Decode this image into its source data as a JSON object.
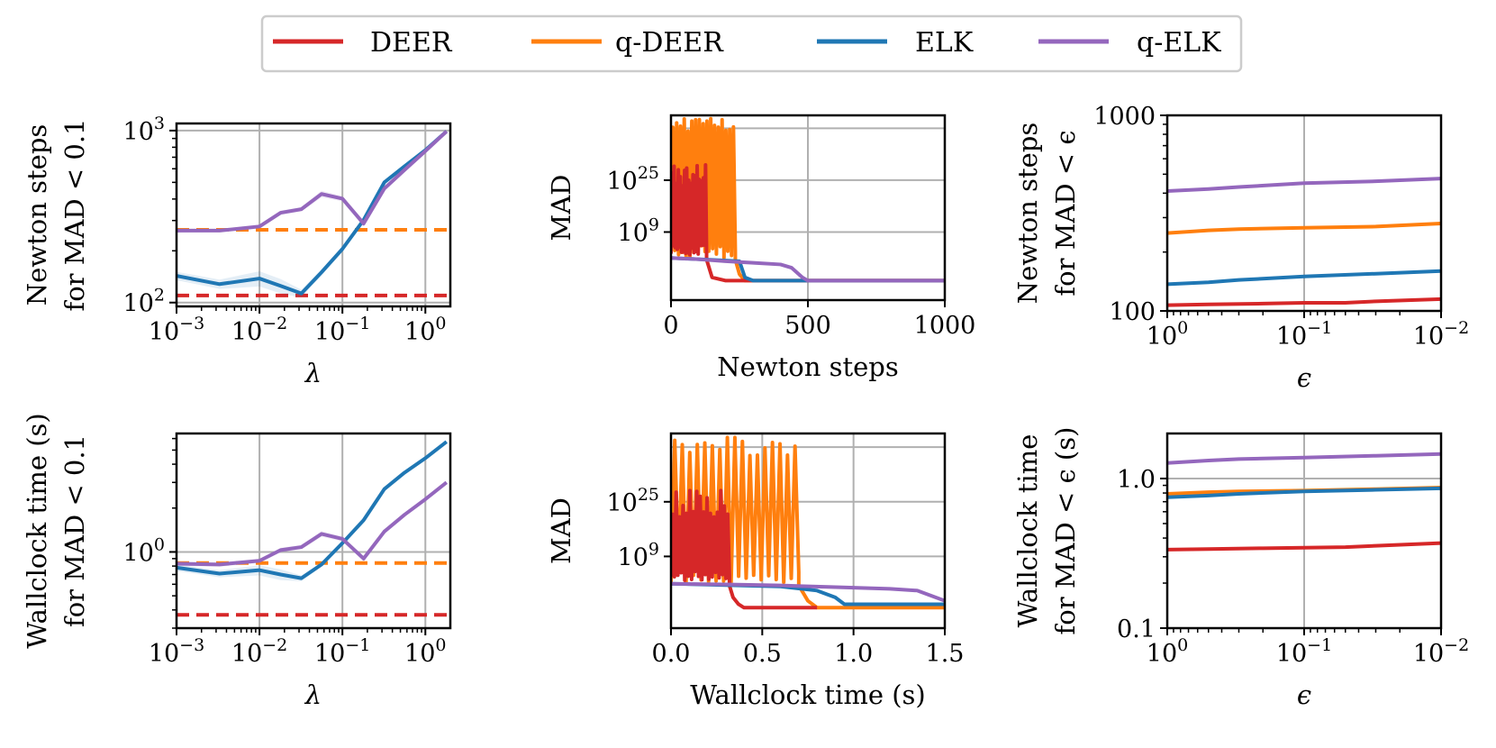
{
  "chart_data": [
    {
      "id": "p1",
      "type": "line",
      "xscale": "log",
      "yscale": "log",
      "xlim": [
        0.001,
        2.0
      ],
      "ylim": [
        95,
        1100
      ],
      "xticks": [
        {
          "v": 0.001,
          "base": "10",
          "exp": "−3"
        },
        {
          "v": 0.01,
          "base": "10",
          "exp": "−2"
        },
        {
          "v": 0.1,
          "base": "10",
          "exp": "−1"
        },
        {
          "v": 1,
          "base": "10",
          "exp": "0"
        }
      ],
      "yticks": [
        {
          "v": 100,
          "base": "10",
          "exp": "2"
        },
        {
          "v": 1000,
          "base": "10",
          "exp": "3"
        }
      ],
      "xlabel": "λ",
      "ylabel": [
        "Newton steps",
        "for MAD < 0.1"
      ],
      "series": [
        {
          "name": "DEER",
          "style": "dashed",
          "x": [
            0.001,
            2.0
          ],
          "y": [
            110,
            110
          ]
        },
        {
          "name": "q-DEER",
          "style": "dashed",
          "x": [
            0.001,
            2.0
          ],
          "y": [
            265,
            265
          ]
        },
        {
          "name": "ELK",
          "style": "solid",
          "x": [
            0.001,
            0.0033,
            0.01,
            0.018,
            0.032,
            0.056,
            0.1,
            0.18,
            0.32,
            0.56,
            1.0,
            1.8
          ],
          "y": [
            143,
            128,
            138,
            125,
            113,
            150,
            205,
            302,
            500,
            620,
            770,
            990
          ],
          "band": [
            8,
            8,
            14,
            12,
            6,
            6,
            6,
            8,
            12,
            12,
            12,
            12
          ]
        },
        {
          "name": "q-ELK",
          "style": "solid",
          "x": [
            0.001,
            0.0033,
            0.01,
            0.018,
            0.032,
            0.056,
            0.1,
            0.18,
            0.32,
            0.56,
            1.0,
            1.8
          ],
          "y": [
            262,
            262,
            277,
            333,
            349,
            428,
            402,
            288,
            460,
            590,
            760,
            990
          ],
          "band": [
            8,
            6,
            8,
            10,
            10,
            20,
            14,
            12,
            12,
            12,
            12,
            12
          ]
        }
      ]
    },
    {
      "id": "p2",
      "type": "line",
      "xscale": "linear",
      "yscale": "log10-exponent",
      "xlim": [
        0,
        1000
      ],
      "ylim": [
        -12,
        45
      ],
      "xticks": [
        {
          "v": 0,
          "text": "0"
        },
        {
          "v": 500,
          "text": "500"
        },
        {
          "v": 1000,
          "text": "1000"
        }
      ],
      "yticks": [
        {
          "v": 9,
          "base": "10",
          "exp": "9"
        },
        {
          "v": 25,
          "base": "10",
          "exp": "25"
        }
      ],
      "ygrid_extra": [
        41
      ],
      "xlabel": "Newton steps",
      "ylabel": [
        "MAD"
      ],
      "series": [
        {
          "name": "DEER",
          "style": "oscillating",
          "start": 0,
          "end": 130,
          "lows": [
            2,
            5
          ],
          "highs": [
            22,
            30
          ],
          "tail_x": [
            130,
            150,
            200,
            300,
            1000
          ],
          "tail_y": [
            0.5,
            -5,
            -6,
            -6,
            -6
          ]
        },
        {
          "name": "q-DEER",
          "style": "oscillating",
          "start": 0,
          "end": 235,
          "lows": [
            1,
            5
          ],
          "highs": [
            40,
            44
          ],
          "tail_x": [
            235,
            250,
            270,
            300,
            1000
          ],
          "tail_y": [
            0.5,
            -4,
            -6,
            -6,
            -6
          ]
        },
        {
          "name": "ELK",
          "style": "solid",
          "x": [
            0,
            100,
            200,
            250,
            270,
            300,
            500,
            1000
          ],
          "y": [
            1,
            0.6,
            0.2,
            0,
            -5,
            -6,
            -6,
            -6
          ]
        },
        {
          "name": "q-ELK",
          "style": "solid",
          "x": [
            0,
            100,
            200,
            300,
            400,
            440,
            480,
            500,
            1000
          ],
          "y": [
            1,
            0.6,
            0,
            -0.5,
            -1,
            -2,
            -5,
            -6,
            -6
          ]
        }
      ]
    },
    {
      "id": "p3",
      "type": "line",
      "xscale": "log-reversed",
      "yscale": "log",
      "xlim": [
        1,
        0.01
      ],
      "ylim": [
        100,
        1000
      ],
      "xticks": [
        {
          "v": 1,
          "base": "10",
          "exp": "0"
        },
        {
          "v": 0.1,
          "base": "10",
          "exp": "−1"
        },
        {
          "v": 0.01,
          "base": "10",
          "exp": "−2"
        }
      ],
      "yticks": [
        {
          "v": 100,
          "text": "100"
        },
        {
          "v": 1000,
          "text": "1000"
        }
      ],
      "xlabel": "ϵ",
      "ylabel": [
        "Newton steps",
        "for MAD < ϵ"
      ],
      "series": [
        {
          "name": "DEER",
          "style": "solid",
          "x": [
            1,
            0.5,
            0.2,
            0.1,
            0.05,
            0.03,
            0.01
          ],
          "y": [
            107,
            108,
            109,
            110,
            110,
            112,
            115
          ]
        },
        {
          "name": "q-DEER",
          "style": "solid",
          "x": [
            1,
            0.5,
            0.3,
            0.1,
            0.03,
            0.01
          ],
          "y": [
            250,
            258,
            262,
            266,
            270,
            280
          ]
        },
        {
          "name": "ELK",
          "style": "solid",
          "x": [
            1,
            0.5,
            0.3,
            0.1,
            0.03,
            0.01
          ],
          "y": [
            137,
            140,
            144,
            150,
            155,
            160
          ]
        },
        {
          "name": "q-ELK",
          "style": "solid",
          "x": [
            1,
            0.5,
            0.3,
            0.1,
            0.03,
            0.01
          ],
          "y": [
            410,
            420,
            430,
            450,
            460,
            475
          ]
        }
      ]
    },
    {
      "id": "p4",
      "type": "line",
      "xscale": "log",
      "yscale": "log",
      "xlim": [
        0.001,
        2.0
      ],
      "ylim": [
        0.3,
        6.5
      ],
      "xticks": [
        {
          "v": 0.001,
          "base": "10",
          "exp": "−3"
        },
        {
          "v": 0.01,
          "base": "10",
          "exp": "−2"
        },
        {
          "v": 0.1,
          "base": "10",
          "exp": "−1"
        },
        {
          "v": 1,
          "base": "10",
          "exp": "0"
        }
      ],
      "yticks": [
        {
          "v": 1,
          "base": "10",
          "exp": "0"
        }
      ],
      "xlabel": "λ",
      "ylabel": [
        "Wallclock time (s)",
        "for MAD < 0.1"
      ],
      "series": [
        {
          "name": "DEER",
          "style": "dashed",
          "x": [
            0.001,
            2.0
          ],
          "y": [
            0.37,
            0.37
          ]
        },
        {
          "name": "q-DEER",
          "style": "dashed",
          "x": [
            0.001,
            2.0
          ],
          "y": [
            0.84,
            0.84
          ]
        },
        {
          "name": "ELK",
          "style": "solid",
          "x": [
            0.001,
            0.0033,
            0.01,
            0.018,
            0.032,
            0.056,
            0.1,
            0.18,
            0.32,
            0.56,
            1.0,
            1.8
          ],
          "y": [
            0.78,
            0.71,
            0.75,
            0.7,
            0.66,
            0.82,
            1.15,
            1.65,
            2.7,
            3.5,
            4.4,
            5.7
          ],
          "band": [
            0.04,
            0.04,
            0.06,
            0.06,
            0.03,
            0.03,
            0.03,
            0.04,
            0.05,
            0.05,
            0.05,
            0.05
          ]
        },
        {
          "name": "q-ELK",
          "style": "solid",
          "x": [
            0.001,
            0.0033,
            0.01,
            0.018,
            0.032,
            0.056,
            0.1,
            0.18,
            0.32,
            0.56,
            1.0,
            1.8
          ],
          "y": [
            0.83,
            0.82,
            0.87,
            1.03,
            1.08,
            1.33,
            1.23,
            0.9,
            1.38,
            1.8,
            2.3,
            3.0
          ],
          "band": [
            0.03,
            0.03,
            0.03,
            0.04,
            0.04,
            0.06,
            0.05,
            0.04,
            0.04,
            0.04,
            0.04,
            0.04
          ]
        }
      ]
    },
    {
      "id": "p5",
      "type": "line",
      "xscale": "linear",
      "yscale": "log10-exponent",
      "xlim": [
        0,
        1.5
      ],
      "ylim": [
        -12,
        45
      ],
      "xticks": [
        {
          "v": 0,
          "text": "0.0"
        },
        {
          "v": 0.5,
          "text": "0.5"
        },
        {
          "v": 1.0,
          "text": "1.0"
        },
        {
          "v": 1.5,
          "text": "1.5"
        }
      ],
      "yticks": [
        {
          "v": 9,
          "base": "10",
          "exp": "9"
        },
        {
          "v": 25,
          "base": "10",
          "exp": "25"
        }
      ],
      "ygrid_extra": [
        41
      ],
      "xlabel": "Wallclock time (s)",
      "ylabel": [
        "MAD"
      ],
      "series": [
        {
          "name": "DEER",
          "style": "oscillating",
          "start": 0,
          "end": 0.32,
          "lows": [
            2,
            5
          ],
          "highs": [
            20,
            29
          ],
          "tail_x": [
            0.32,
            0.34,
            0.37,
            0.4,
            0.8
          ],
          "tail_y": [
            0.5,
            -3,
            -5,
            -6,
            -6
          ]
        },
        {
          "name": "q-DEER",
          "style": "oscillating",
          "start": 0,
          "end": 0.7,
          "lows": [
            1,
            5
          ],
          "highs": [
            38,
            44
          ],
          "tail_x": [
            0.7,
            0.75,
            0.8,
            0.85,
            1.5
          ],
          "tail_y": [
            0.5,
            -4,
            -6,
            -6,
            -6
          ]
        },
        {
          "name": "ELK",
          "style": "solid",
          "x": [
            0,
            0.3,
            0.6,
            0.8,
            0.9,
            0.95,
            1.0,
            1.5
          ],
          "y": [
            1,
            0.6,
            0.2,
            -1,
            -3,
            -5,
            -5,
            -5
          ]
        },
        {
          "name": "q-ELK",
          "style": "solid",
          "x": [
            0,
            0.3,
            0.6,
            0.9,
            1.2,
            1.35,
            1.45,
            1.5
          ],
          "y": [
            1,
            0.8,
            0.5,
            0,
            -0.5,
            -1,
            -3,
            -4
          ]
        }
      ]
    },
    {
      "id": "p6",
      "type": "line",
      "xscale": "log-reversed",
      "yscale": "log",
      "xlim": [
        1,
        0.01
      ],
      "ylim": [
        0.1,
        2.0
      ],
      "xticks": [
        {
          "v": 1,
          "base": "10",
          "exp": "0"
        },
        {
          "v": 0.1,
          "base": "10",
          "exp": "−1"
        },
        {
          "v": 0.01,
          "base": "10",
          "exp": "−2"
        }
      ],
      "yticks": [
        {
          "v": 0.1,
          "text": "0.1"
        },
        {
          "v": 1.0,
          "text": "1.0"
        }
      ],
      "xlabel": "ϵ",
      "ylabel": [
        "Wallclock time",
        "for MAD < ϵ (s)"
      ],
      "series": [
        {
          "name": "DEER",
          "style": "solid",
          "x": [
            1,
            0.5,
            0.2,
            0.1,
            0.05,
            0.03,
            0.01
          ],
          "y": [
            0.335,
            0.338,
            0.342,
            0.345,
            0.348,
            0.355,
            0.37
          ]
        },
        {
          "name": "q-DEER",
          "style": "solid",
          "x": [
            1,
            0.5,
            0.3,
            0.1,
            0.03,
            0.01
          ],
          "y": [
            0.79,
            0.81,
            0.82,
            0.83,
            0.85,
            0.87
          ]
        },
        {
          "name": "ELK",
          "style": "solid",
          "x": [
            1,
            0.5,
            0.3,
            0.1,
            0.03,
            0.01
          ],
          "y": [
            0.75,
            0.77,
            0.79,
            0.82,
            0.84,
            0.86
          ]
        },
        {
          "name": "q-ELK",
          "style": "solid",
          "x": [
            1,
            0.5,
            0.3,
            0.1,
            0.03,
            0.01
          ],
          "y": [
            1.27,
            1.32,
            1.35,
            1.38,
            1.42,
            1.46
          ]
        }
      ]
    }
  ],
  "legend": {
    "placement": "top-center",
    "items": [
      {
        "label": "DEER",
        "color": "#d62728"
      },
      {
        "label": "q-DEER",
        "color": "#ff7f0e"
      },
      {
        "label": "ELK",
        "color": "#1f77b4"
      },
      {
        "label": "q-ELK",
        "color": "#9467bd"
      }
    ]
  },
  "colors": {
    "DEER": "#d62728",
    "q-DEER": "#ff7f0e",
    "ELK": "#1f77b4",
    "q-ELK": "#9467bd",
    "grid": "#b0b0b0"
  }
}
